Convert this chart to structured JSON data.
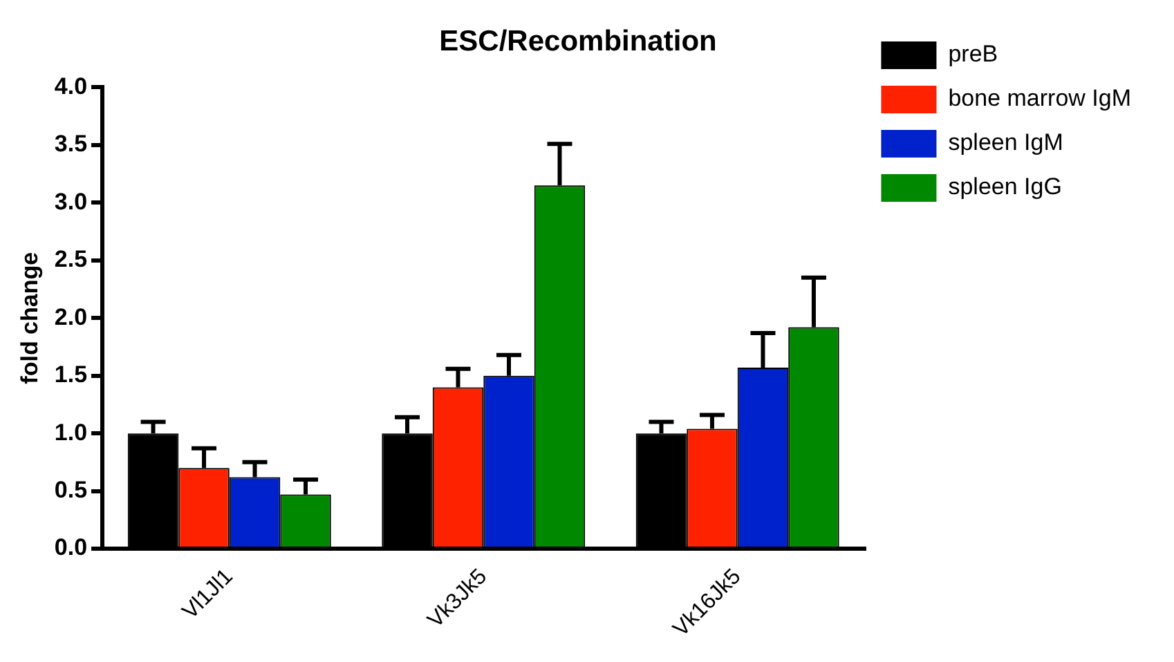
{
  "chart_data": {
    "type": "bar",
    "title": "ESC/Recombination",
    "ylabel": "fold change",
    "categories": [
      "Vl1Jl1",
      "Vk3Jk5",
      "Vk16Jk5"
    ],
    "series": [
      {
        "name": "preB",
        "color": "#000000",
        "values": [
          1.0,
          1.0,
          1.0
        ],
        "errors": [
          [
            1.0,
            1.1
          ],
          [
            1.0,
            1.14
          ],
          [
            1.0,
            1.1
          ]
        ]
      },
      {
        "name": "bone marrow IgM",
        "color": "#ff2200",
        "values": [
          0.7,
          1.4,
          1.04
        ],
        "errors": [
          [
            0.7,
            0.87
          ],
          [
            1.4,
            1.56
          ],
          [
            1.04,
            1.16
          ]
        ]
      },
      {
        "name": "spleen IgM",
        "color": "#0022cc",
        "values": [
          0.62,
          1.5,
          1.57
        ],
        "errors": [
          [
            0.62,
            0.75
          ],
          [
            1.5,
            1.68
          ],
          [
            1.57,
            1.87
          ]
        ]
      },
      {
        "name": "spleen IgG",
        "color": "#008800",
        "values": [
          0.47,
          3.15,
          1.92
        ],
        "errors": [
          [
            0.47,
            0.6
          ],
          [
            3.15,
            3.51
          ],
          [
            1.92,
            2.35
          ]
        ]
      }
    ],
    "ylim": [
      0,
      4
    ],
    "yticks": [
      {
        "value": 0,
        "label": "0.0"
      },
      0.5,
      {
        "value": 1,
        "label": "1.0"
      },
      1.5,
      {
        "value": 2,
        "label": "2.0"
      },
      2.5,
      {
        "value": 3,
        "label": "3.0"
      },
      3.5,
      {
        "value": 4,
        "label": "4.0"
      }
    ],
    "grid": false,
    "legend": "right"
  }
}
